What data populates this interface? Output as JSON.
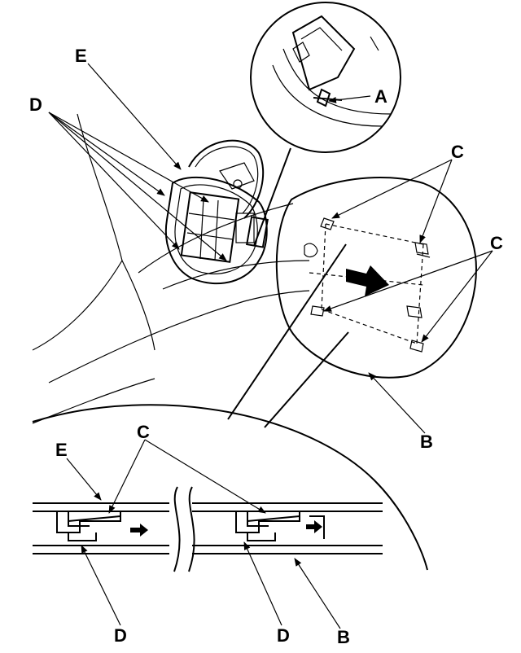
{
  "diagram": {
    "labels": {
      "a": "A",
      "b_detail": "B",
      "b_section": "B",
      "c_top": "C",
      "c_right": "C",
      "c_section": "C",
      "d_top": "D",
      "d_section_left": "D",
      "d_section_right": "D",
      "e_top": "E",
      "e_section": "E"
    }
  }
}
